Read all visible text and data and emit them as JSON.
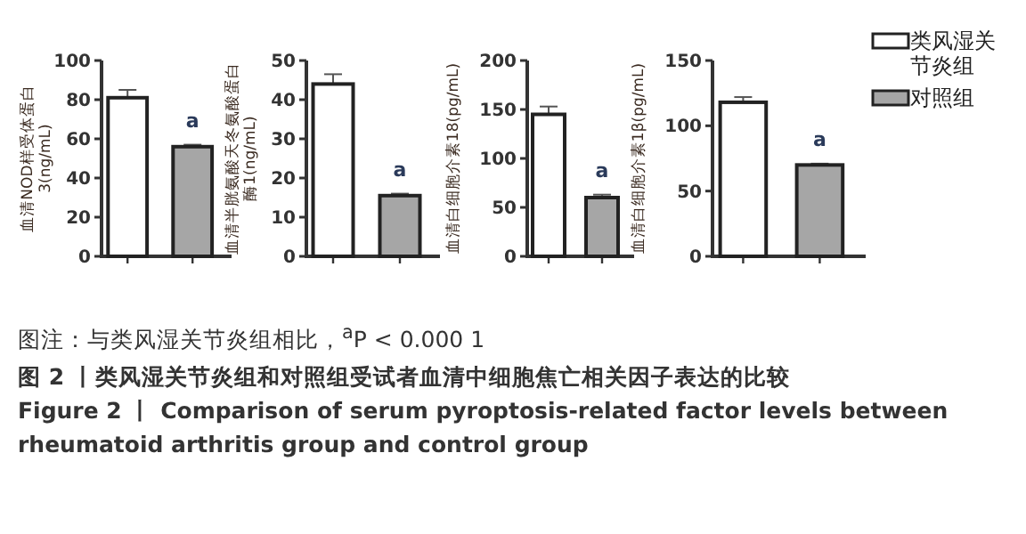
{
  "chart_data": [
    {
      "type": "bar",
      "ylabel": "血清NOD样受体蛋白3(ng/mL)",
      "categories": [
        null,
        null
      ],
      "ylim": [
        0,
        100
      ],
      "yticks": [
        0,
        20,
        40,
        60,
        80,
        100
      ],
      "series": [
        {
          "color": "#ffffff",
          "values": [
            81,
            null
          ],
          "errors": [
            4,
            null
          ]
        },
        {
          "color": "#a6a6a6",
          "values": [
            null,
            56
          ],
          "errors": [
            null,
            1
          ]
        }
      ],
      "annotations": [
        "a"
      ]
    },
    {
      "type": "bar",
      "ylabel": "血清半胱氨酸天冬氨酸蛋白酶1(ng/mL)",
      "categories": [
        null,
        null
      ],
      "ylim": [
        0,
        50
      ],
      "yticks": [
        0,
        10,
        20,
        30,
        40,
        50
      ],
      "series": [
        {
          "color": "#ffffff",
          "values": [
            44,
            null
          ],
          "errors": [
            2.5,
            null
          ]
        },
        {
          "color": "#a6a6a6",
          "values": [
            null,
            15.5
          ],
          "errors": [
            null,
            0.5
          ]
        }
      ],
      "annotations": [
        "a"
      ]
    },
    {
      "type": "bar",
      "ylabel": "血清白细胞介素18(pg/mL)",
      "categories": [
        null,
        null
      ],
      "ylim": [
        0,
        200
      ],
      "yticks": [
        0,
        50,
        100,
        150,
        200
      ],
      "series": [
        {
          "color": "#ffffff",
          "values": [
            145,
            null
          ],
          "errors": [
            8,
            null
          ]
        },
        {
          "color": "#a6a6a6",
          "values": [
            null,
            60
          ],
          "errors": [
            null,
            3
          ]
        }
      ],
      "annotations": [
        "a"
      ]
    },
    {
      "type": "bar",
      "ylabel": "血清白细胞介素1β(pg/mL)",
      "categories": [
        null,
        null
      ],
      "ylim": [
        0,
        150
      ],
      "yticks": [
        0,
        50,
        100,
        150
      ],
      "legend": "right",
      "series": [
        {
          "name": "类风湿关节炎组",
          "color": "#ffffff",
          "values": [
            118,
            null
          ],
          "errors": [
            4,
            null
          ]
        },
        {
          "name": "对照组",
          "color": "#a6a6a6",
          "values": [
            null,
            70
          ],
          "errors": [
            null,
            1
          ]
        }
      ],
      "annotations": [
        "a"
      ]
    },
    {
      "type": "other",
      "annotations": [
        "图注：与类风湿关节炎组相比，$^{a}$P < 0.000 1",
        "图 2 丨类风湿关节炎组和对照组受试者血清中细胞焦亡相关因子表达的比较",
        "Figure 2 丨 Comparison of serum pyroptosis-related factor levels between rheumatoid arthritis group and control group"
      ]
    }
  ]
}
